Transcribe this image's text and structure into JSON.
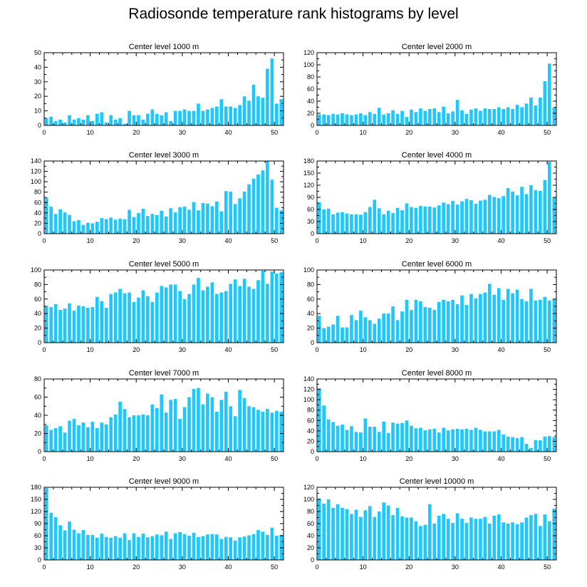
{
  "title": "Radiosonde temperature rank histograms by level",
  "colors": {
    "bar": "#1ec8ff",
    "axis": "#000000"
  },
  "chart_data": [
    {
      "type": "bar",
      "title": "Center level 1000 m",
      "xlim": [
        0,
        52
      ],
      "ylim": [
        0,
        50
      ],
      "xticks": [
        0,
        10,
        20,
        30,
        40,
        50
      ],
      "yticks": [
        0,
        10,
        20,
        30,
        40,
        50
      ],
      "values": [
        5,
        6,
        3,
        4,
        2,
        7,
        4,
        5,
        4,
        7,
        3,
        8,
        9,
        2,
        7,
        4,
        5,
        1,
        10,
        7,
        7,
        4,
        8,
        11,
        8,
        7,
        9,
        3,
        10,
        10,
        11,
        10,
        10,
        15,
        10,
        11,
        12,
        13,
        18,
        13,
        13,
        12,
        14,
        20,
        17,
        28,
        20,
        19,
        39,
        46,
        15,
        18
      ]
    },
    {
      "type": "bar",
      "title": "Center level 2000 m",
      "xlim": [
        0,
        52
      ],
      "ylim": [
        0,
        120
      ],
      "xticks": [
        0,
        10,
        20,
        30,
        40,
        50
      ],
      "yticks": [
        0,
        20,
        40,
        60,
        80,
        100,
        120
      ],
      "values": [
        18,
        18,
        17,
        19,
        18,
        20,
        18,
        17,
        18,
        20,
        17,
        22,
        19,
        29,
        18,
        20,
        25,
        19,
        24,
        14,
        26,
        22,
        28,
        24,
        27,
        28,
        22,
        31,
        20,
        23,
        42,
        25,
        19,
        26,
        28,
        24,
        28,
        27,
        27,
        30,
        27,
        30,
        27,
        34,
        30,
        36,
        46,
        33,
        46,
        73,
        102,
        30
      ]
    },
    {
      "type": "bar",
      "title": "Center level 3000 m",
      "xlim": [
        0,
        52
      ],
      "ylim": [
        0,
        140
      ],
      "xticks": [
        0,
        10,
        20,
        30,
        40,
        50
      ],
      "yticks": [
        0,
        20,
        40,
        60,
        80,
        100,
        120,
        140
      ],
      "values": [
        70,
        52,
        38,
        47,
        41,
        36,
        24,
        26,
        17,
        21,
        20,
        23,
        30,
        28,
        31,
        27,
        29,
        28,
        46,
        32,
        40,
        48,
        34,
        38,
        36,
        44,
        33,
        49,
        41,
        51,
        52,
        46,
        61,
        45,
        59,
        58,
        53,
        62,
        43,
        82,
        81,
        57,
        68,
        81,
        95,
        106,
        114,
        122,
        140,
        104,
        50,
        45
      ]
    },
    {
      "type": "bar",
      "title": "Center level 4000 m",
      "xlim": [
        0,
        52
      ],
      "ylim": [
        0,
        180
      ],
      "xticks": [
        0,
        10,
        20,
        30,
        40,
        50
      ],
      "yticks": [
        0,
        30,
        60,
        90,
        120,
        150,
        180
      ],
      "values": [
        78,
        60,
        62,
        48,
        52,
        53,
        50,
        48,
        48,
        47,
        53,
        66,
        84,
        63,
        48,
        57,
        51,
        64,
        58,
        75,
        66,
        64,
        69,
        67,
        67,
        65,
        70,
        77,
        73,
        81,
        72,
        80,
        86,
        83,
        74,
        82,
        84,
        96,
        91,
        88,
        93,
        113,
        104,
        95,
        116,
        98,
        120,
        108,
        106,
        133,
        178,
        90
      ]
    },
    {
      "type": "bar",
      "title": "Center level 5000 m",
      "xlim": [
        0,
        52
      ],
      "ylim": [
        0,
        100
      ],
      "xticks": [
        0,
        10,
        20,
        30,
        40,
        50
      ],
      "yticks": [
        0,
        20,
        40,
        60,
        80,
        100
      ],
      "values": [
        51,
        49,
        53,
        45,
        47,
        54,
        44,
        51,
        50,
        48,
        49,
        63,
        57,
        48,
        67,
        69,
        74,
        68,
        69,
        56,
        62,
        72,
        64,
        56,
        69,
        78,
        76,
        80,
        80,
        71,
        60,
        67,
        80,
        89,
        72,
        77,
        83,
        67,
        69,
        71,
        81,
        87,
        78,
        88,
        77,
        74,
        86,
        99,
        81,
        98,
        95,
        97
      ]
    },
    {
      "type": "bar",
      "title": "Center level 6000 m",
      "xlim": [
        0,
        52
      ],
      "ylim": [
        0,
        100
      ],
      "xticks": [
        0,
        10,
        20,
        30,
        40,
        50
      ],
      "yticks": [
        0,
        20,
        40,
        60,
        80,
        100
      ],
      "values": [
        37,
        20,
        22,
        25,
        37,
        21,
        21,
        38,
        31,
        44,
        35,
        31,
        26,
        33,
        40,
        40,
        50,
        31,
        43,
        59,
        45,
        59,
        57,
        49,
        48,
        45,
        56,
        59,
        57,
        59,
        53,
        65,
        52,
        67,
        61,
        67,
        69,
        81,
        66,
        75,
        59,
        74,
        68,
        73,
        60,
        57,
        74,
        58,
        59,
        63,
        58,
        60
      ]
    },
    {
      "type": "bar",
      "title": "Center level 7000 m",
      "xlim": [
        0,
        52
      ],
      "ylim": [
        0,
        80
      ],
      "xticks": [
        0,
        10,
        20,
        30,
        40,
        50
      ],
      "yticks": [
        0,
        20,
        40,
        60,
        80
      ],
      "values": [
        29,
        24,
        26,
        28,
        21,
        34,
        36,
        29,
        32,
        27,
        33,
        26,
        32,
        30,
        38,
        41,
        55,
        47,
        38,
        40,
        40,
        41,
        40,
        52,
        48,
        63,
        43,
        57,
        58,
        36,
        49,
        60,
        69,
        70,
        52,
        64,
        60,
        44,
        57,
        66,
        50,
        39,
        68,
        59,
        50,
        49,
        46,
        44,
        47,
        43,
        45,
        44
      ]
    },
    {
      "type": "bar",
      "title": "Center level 8000 m",
      "xlim": [
        0,
        52
      ],
      "ylim": [
        0,
        140
      ],
      "xticks": [
        0,
        10,
        20,
        30,
        40,
        50
      ],
      "yticks": [
        0,
        20,
        40,
        60,
        80,
        100,
        120,
        140
      ],
      "values": [
        122,
        89,
        62,
        57,
        50,
        52,
        42,
        49,
        38,
        37,
        64,
        48,
        48,
        38,
        58,
        36,
        56,
        54,
        55,
        60,
        50,
        45,
        46,
        41,
        43,
        44,
        37,
        46,
        41,
        43,
        44,
        43,
        44,
        42,
        46,
        42,
        39,
        39,
        39,
        42,
        33,
        29,
        28,
        26,
        28,
        15,
        7,
        22,
        22,
        29,
        30,
        28
      ]
    },
    {
      "type": "bar",
      "title": "Center level 9000 m",
      "xlim": [
        0,
        52
      ],
      "ylim": [
        0,
        180
      ],
      "xticks": [
        0,
        10,
        20,
        30,
        40,
        50
      ],
      "yticks": [
        0,
        30,
        60,
        90,
        120,
        150,
        180
      ],
      "values": [
        178,
        117,
        106,
        86,
        73,
        95,
        75,
        66,
        74,
        62,
        62,
        55,
        65,
        57,
        55,
        59,
        55,
        66,
        49,
        66,
        57,
        65,
        56,
        59,
        63,
        61,
        70,
        52,
        66,
        69,
        64,
        60,
        67,
        57,
        59,
        63,
        64,
        63,
        52,
        57,
        56,
        48,
        56,
        58,
        61,
        64,
        74,
        70,
        62,
        80,
        60,
        62
      ]
    },
    {
      "type": "bar",
      "title": "Center level 10000 m",
      "xlim": [
        0,
        52
      ],
      "ylim": [
        0,
        120
      ],
      "xticks": [
        0,
        10,
        20,
        30,
        40,
        50
      ],
      "yticks": [
        0,
        20,
        40,
        60,
        80,
        100,
        120
      ],
      "values": [
        101,
        93,
        100,
        86,
        92,
        86,
        84,
        76,
        83,
        71,
        82,
        89,
        71,
        80,
        95,
        90,
        74,
        86,
        72,
        70,
        70,
        64,
        56,
        58,
        92,
        60,
        73,
        76,
        68,
        61,
        77,
        68,
        61,
        70,
        68,
        68,
        71,
        60,
        73,
        75,
        62,
        60,
        62,
        59,
        62,
        70,
        74,
        76,
        56,
        75,
        64,
        85
      ]
    }
  ]
}
